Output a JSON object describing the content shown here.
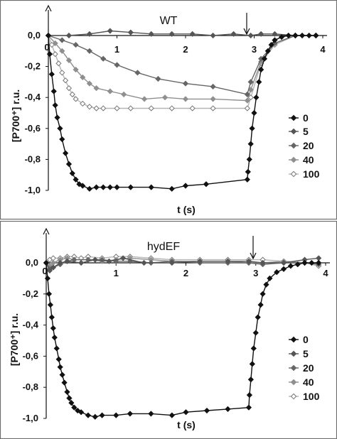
{
  "chart_data": [
    {
      "type": "line",
      "title": "WT",
      "xlabel": "t (s)",
      "ylabel": "[P700⁺] r.u.",
      "xlim": [
        0,
        4
      ],
      "ylim": [
        -1.0,
        0.0
      ],
      "xticks": [
        "1",
        "2",
        "3",
        "4"
      ],
      "yticks": [
        "0,0",
        "-0,2",
        "-0,4",
        "-0,6",
        "-0,8",
        "-1,0"
      ],
      "origin_label": "0",
      "legend_position": "right",
      "annotations": [
        "upward arrow at y-axis top",
        "downward arrow at t ≈ 2.9 s"
      ],
      "series": [
        {
          "name": "0",
          "color": "#111111",
          "marker": "diamond-filled",
          "x": [
            0,
            0.02,
            0.05,
            0.08,
            0.1,
            0.13,
            0.17,
            0.2,
            0.25,
            0.3,
            0.35,
            0.4,
            0.45,
            0.5,
            0.6,
            0.7,
            0.8,
            0.9,
            1.0,
            1.2,
            1.5,
            1.8,
            2.0,
            2.3,
            2.9,
            2.91,
            2.93,
            2.95,
            2.97,
            3.0,
            3.03,
            3.07,
            3.1,
            3.15,
            3.2,
            3.25,
            3.3,
            3.4,
            3.5,
            3.6,
            3.7,
            3.8,
            3.9
          ],
          "y": [
            0,
            -0.12,
            -0.25,
            -0.36,
            -0.45,
            -0.53,
            -0.6,
            -0.67,
            -0.76,
            -0.83,
            -0.89,
            -0.93,
            -0.96,
            -0.97,
            -0.99,
            -0.98,
            -0.98,
            -0.98,
            -0.98,
            -0.98,
            -0.98,
            -0.99,
            -0.97,
            -0.96,
            -0.93,
            -0.88,
            -0.8,
            -0.7,
            -0.6,
            -0.5,
            -0.4,
            -0.3,
            -0.22,
            -0.15,
            -0.1,
            -0.06,
            -0.03,
            -0.01,
            0,
            0,
            0,
            0,
            0
          ]
        },
        {
          "name": "5",
          "color": "#555555",
          "marker": "diamond-filled",
          "x": [
            0,
            0.3,
            0.6,
            0.9,
            1.2,
            1.5,
            1.8,
            2.1,
            2.4,
            2.7,
            2.95,
            3.1,
            3.3,
            3.6,
            3.9
          ],
          "y": [
            0,
            0.0,
            0.01,
            0.03,
            0.02,
            0.01,
            0.01,
            0.01,
            0.0,
            0.01,
            0.0,
            0.01,
            0.01,
            0.0,
            0.0
          ]
        },
        {
          "name": "20",
          "color": "#666666",
          "marker": "diamond-filled",
          "x": [
            0,
            0.2,
            0.4,
            0.6,
            0.8,
            1.0,
            1.3,
            1.6,
            2.0,
            2.4,
            2.9,
            2.95,
            3.1,
            3.3,
            3.6,
            3.9
          ],
          "y": [
            0,
            -0.03,
            -0.06,
            -0.1,
            -0.15,
            -0.19,
            -0.24,
            -0.28,
            -0.31,
            -0.33,
            -0.38,
            -0.3,
            -0.15,
            -0.05,
            0.0,
            0.0
          ]
        },
        {
          "name": "40",
          "color": "#8f8f8f",
          "marker": "diamond-filled",
          "x": [
            0,
            0.1,
            0.2,
            0.3,
            0.4,
            0.5,
            0.6,
            0.7,
            0.9,
            1.1,
            1.4,
            1.7,
            2.0,
            2.4,
            2.9,
            2.95,
            3.1,
            3.3,
            3.6,
            3.9
          ],
          "y": [
            0,
            -0.05,
            -0.1,
            -0.16,
            -0.22,
            -0.27,
            -0.31,
            -0.34,
            -0.36,
            -0.38,
            -0.41,
            -0.4,
            -0.41,
            -0.41,
            -0.42,
            -0.35,
            -0.17,
            -0.05,
            0.0,
            0.0
          ]
        },
        {
          "name": "100",
          "color": "#b5b5b5",
          "marker": "diamond-open",
          "x": [
            0,
            0.05,
            0.1,
            0.15,
            0.2,
            0.25,
            0.3,
            0.35,
            0.4,
            0.5,
            0.6,
            0.7,
            0.8,
            1.0,
            1.2,
            1.5,
            1.8,
            2.1,
            2.4,
            2.9,
            2.95,
            3.1,
            3.3,
            3.6,
            3.9
          ],
          "y": [
            0,
            -0.06,
            -0.12,
            -0.18,
            -0.24,
            -0.29,
            -0.34,
            -0.38,
            -0.41,
            -0.44,
            -0.46,
            -0.47,
            -0.47,
            -0.47,
            -0.47,
            -0.47,
            -0.47,
            -0.47,
            -0.47,
            -0.47,
            -0.4,
            -0.18,
            -0.06,
            0.0,
            0.0
          ]
        }
      ]
    },
    {
      "type": "line",
      "title": "hydEF",
      "xlabel": "t (s)",
      "ylabel": "[P700⁺] r.u.",
      "xlim": [
        0,
        4
      ],
      "ylim": [
        -1.0,
        0.0
      ],
      "xticks": [
        "1",
        "2",
        "3",
        "4"
      ],
      "yticks": [
        "0,0",
        "-0,2",
        "-0,4",
        "-0,6",
        "-0,8",
        "-1,0"
      ],
      "origin_label": "0",
      "legend_position": "right",
      "annotations": [
        "upward arrow at y-axis top",
        "downward arrow at t ≈ 2.9 s"
      ],
      "series": [
        {
          "name": "0",
          "color": "#111111",
          "marker": "diamond-filled",
          "x": [
            0,
            0.02,
            0.04,
            0.06,
            0.08,
            0.1,
            0.12,
            0.15,
            0.18,
            0.2,
            0.23,
            0.26,
            0.3,
            0.33,
            0.36,
            0.4,
            0.45,
            0.5,
            0.6,
            0.7,
            0.8,
            1.0,
            1.2,
            1.5,
            1.8,
            2.0,
            2.3,
            2.6,
            2.9,
            2.91,
            2.93,
            2.95,
            2.97,
            3.0,
            3.03,
            3.07,
            3.1,
            3.15,
            3.2,
            3.3,
            3.4,
            3.5,
            3.6,
            3.7,
            3.8,
            3.9
          ],
          "y": [
            0,
            -0.1,
            -0.2,
            -0.27,
            -0.35,
            -0.42,
            -0.48,
            -0.55,
            -0.62,
            -0.67,
            -0.72,
            -0.77,
            -0.83,
            -0.87,
            -0.9,
            -0.93,
            -0.95,
            -0.96,
            -0.98,
            -0.99,
            -0.98,
            -0.98,
            -0.97,
            -0.97,
            -0.98,
            -0.96,
            -0.95,
            -0.94,
            -0.93,
            -0.85,
            -0.75,
            -0.65,
            -0.55,
            -0.45,
            -0.35,
            -0.27,
            -0.2,
            -0.14,
            -0.1,
            -0.06,
            -0.04,
            -0.02,
            -0.01,
            0,
            0,
            0
          ]
        },
        {
          "name": "5",
          "color": "#555555",
          "marker": "diamond-filled",
          "x": [
            0,
            0.05,
            0.1,
            0.2,
            0.3,
            0.5,
            0.7,
            0.9,
            1.1,
            1.4,
            1.8,
            2.2,
            2.6,
            2.9,
            3.1,
            3.4,
            3.7,
            3.9
          ],
          "y": [
            0,
            -0.05,
            -0.03,
            0.0,
            0.01,
            0.0,
            0.02,
            0.01,
            0.03,
            0.0,
            0.0,
            0.01,
            0.01,
            0.01,
            0.0,
            0.0,
            0.02,
            0.03
          ]
        },
        {
          "name": "20",
          "color": "#666666",
          "marker": "diamond-filled",
          "x": [
            0,
            0.05,
            0.1,
            0.2,
            0.3,
            0.4,
            0.6,
            0.8,
            1.0,
            1.2,
            1.5,
            1.8,
            2.2,
            2.6,
            2.9,
            3.1,
            3.4,
            3.7,
            3.9
          ],
          "y": [
            0,
            -0.04,
            -0.03,
            -0.01,
            0.01,
            0.02,
            0.02,
            0.02,
            0.01,
            0.01,
            0.0,
            0.01,
            0.0,
            0.0,
            0.0,
            -0.01,
            0.0,
            0.0,
            -0.01
          ]
        },
        {
          "name": "40",
          "color": "#8f8f8f",
          "marker": "diamond-filled",
          "x": [
            0,
            0.05,
            0.1,
            0.2,
            0.3,
            0.4,
            0.6,
            0.8,
            1.0,
            1.2,
            1.5,
            1.8,
            2.2,
            2.6,
            2.9,
            3.1,
            3.4,
            3.7,
            3.9
          ],
          "y": [
            0,
            -0.02,
            0.0,
            0.02,
            0.03,
            0.02,
            0.02,
            0.01,
            0.02,
            0.03,
            0.02,
            0.01,
            0.01,
            0.01,
            0.0,
            0.0,
            0.01,
            0.0,
            0.0
          ]
        },
        {
          "name": "100",
          "color": "#b5b5b5",
          "marker": "diamond-open",
          "x": [
            0,
            0.05,
            0.1,
            0.2,
            0.3,
            0.4,
            0.5,
            0.6,
            0.8,
            1.0,
            1.2,
            1.5,
            1.8,
            2.2,
            2.6,
            2.9,
            3.1,
            3.4,
            3.7,
            3.9
          ],
          "y": [
            0,
            0.02,
            0.03,
            0.03,
            0.04,
            0.04,
            0.03,
            0.04,
            0.03,
            0.04,
            0.04,
            0.03,
            0.02,
            0.02,
            0.02,
            0.02,
            0.02,
            0.01,
            0.0,
            -0.02
          ]
        }
      ]
    }
  ]
}
